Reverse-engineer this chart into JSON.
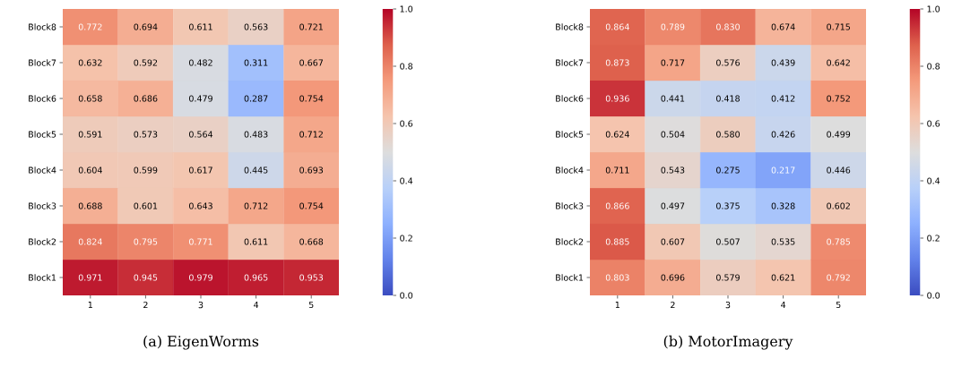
{
  "chart_data": [
    {
      "type": "heatmap",
      "title": "(a) EigenWorms",
      "categories": [
        "1",
        "2",
        "3",
        "4",
        "5"
      ],
      "y_categories": [
        "Block8",
        "Block7",
        "Block6",
        "Block5",
        "Block4",
        "Block3",
        "Block2",
        "Block1"
      ],
      "cells": [
        [
          0.772,
          0.694,
          0.611,
          0.563,
          0.721
        ],
        [
          0.632,
          0.592,
          0.482,
          0.311,
          0.667
        ],
        [
          0.658,
          0.686,
          0.479,
          0.287,
          0.754
        ],
        [
          0.591,
          0.573,
          0.564,
          0.483,
          0.712
        ],
        [
          0.604,
          0.599,
          0.617,
          0.445,
          0.693
        ],
        [
          0.688,
          0.601,
          0.643,
          0.712,
          0.754
        ],
        [
          0.824,
          0.795,
          0.771,
          0.611,
          0.668
        ],
        [
          0.971,
          0.945,
          0.979,
          0.965,
          0.953
        ]
      ],
      "data_labels": true,
      "clim": [
        0,
        1
      ],
      "cticks": [
        {
          "value": 0,
          "label": "0.0"
        },
        {
          "value": 0.2,
          "label": "0.2"
        },
        {
          "value": 0.4,
          "label": "0.4"
        },
        {
          "value": 0.6,
          "label": "0.6"
        },
        {
          "value": 0.8,
          "label": "0.8"
        },
        {
          "value": 1,
          "label": "1.0"
        }
      ]
    },
    {
      "type": "heatmap",
      "title": "(b) MotorImagery",
      "categories": [
        "1",
        "2",
        "3",
        "4",
        "5"
      ],
      "y_categories": [
        "Block8",
        "Block7",
        "Block6",
        "Block5",
        "Block4",
        "Block3",
        "Block2",
        "Block1"
      ],
      "cells": [
        [
          0.864,
          0.789,
          0.83,
          0.674,
          0.715
        ],
        [
          0.873,
          0.717,
          0.576,
          0.439,
          0.642
        ],
        [
          0.936,
          0.441,
          0.418,
          0.412,
          0.752
        ],
        [
          0.624,
          0.504,
          0.58,
          0.426,
          0.499
        ],
        [
          0.711,
          0.543,
          0.275,
          0.217,
          0.446
        ],
        [
          0.866,
          0.497,
          0.375,
          0.328,
          0.602
        ],
        [
          0.885,
          0.607,
          0.507,
          0.535,
          0.785
        ],
        [
          0.803,
          0.696,
          0.579,
          0.621,
          0.792
        ]
      ],
      "cell_labels": [
        [
          "0.864",
          "0.789",
          "0.830",
          "0.674",
          "0.715"
        ],
        [
          "0.873",
          "0.717",
          "0.576",
          "0.439",
          "0.642"
        ],
        [
          "0.936",
          "0.441",
          "0.418",
          "0.412",
          "0.752"
        ],
        [
          "0.624",
          "0.504",
          "0.580",
          "0.426",
          "0.499"
        ],
        [
          "0.711",
          "0.543",
          "0.275",
          "0.217",
          "0.446"
        ],
        [
          "0.866",
          "0.497",
          "0.375",
          "0.328",
          "0.602"
        ],
        [
          "0.885",
          "0.607",
          "0.507",
          "0.535",
          "0.785"
        ],
        [
          "0.803",
          "0.696",
          "0.579",
          "0.621",
          "0.792"
        ]
      ],
      "clim": [
        0,
        1
      ],
      "cticks": [
        {
          "value": 0,
          "label": "0.0"
        },
        {
          "value": 0.2,
          "label": "0.2"
        },
        {
          "value": 0.4,
          "label": "0.4"
        },
        {
          "value": 0.6,
          "label": "0.6"
        },
        {
          "value": 0.8,
          "label": "0.8"
        },
        {
          "value": 1,
          "label": "1.0"
        }
      ]
    }
  ]
}
